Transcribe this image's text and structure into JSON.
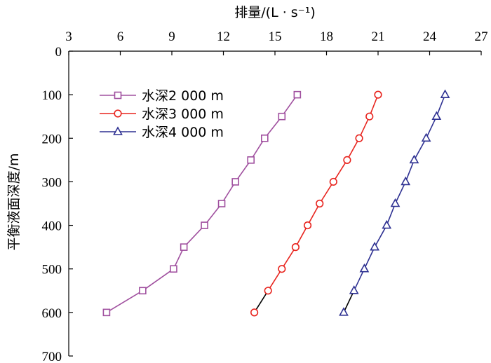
{
  "chart_data": {
    "type": "line",
    "xlabel": "排量/(L · s⁻¹)",
    "ylabel": "平衡液面深度/m",
    "x_axis_position": "top",
    "y_axis_inverted": true,
    "xlim": [
      3,
      27
    ],
    "ylim": [
      0,
      700
    ],
    "xticks": [
      "3",
      "6",
      "9",
      "12",
      "15",
      "18",
      "21",
      "24",
      "27"
    ],
    "yticks": [
      "0",
      "100",
      "200",
      "300",
      "400",
      "500",
      "600",
      "700"
    ],
    "grid": false,
    "legend_position": "top-left",
    "series": [
      {
        "name": "水深2 000 m",
        "marker": "square",
        "color": "#a0509f",
        "points": [
          [
            16.3,
            100
          ],
          [
            15.4,
            150
          ],
          [
            14.4,
            200
          ],
          [
            13.6,
            250
          ],
          [
            12.7,
            300
          ],
          [
            11.9,
            350
          ],
          [
            10.9,
            400
          ],
          [
            9.7,
            450
          ],
          [
            9.1,
            500
          ],
          [
            7.3,
            550
          ],
          [
            5.2,
            600
          ]
        ]
      },
      {
        "name": "水深3 000 m",
        "marker": "circle",
        "color": "#e8251f",
        "points": [
          [
            21.0,
            100
          ],
          [
            20.5,
            150
          ],
          [
            19.9,
            200
          ],
          [
            19.2,
            250
          ],
          [
            18.4,
            300
          ],
          [
            17.6,
            350
          ],
          [
            16.9,
            400
          ],
          [
            16.2,
            450
          ],
          [
            15.4,
            500
          ],
          [
            14.6,
            550
          ],
          [
            13.8,
            600
          ]
        ]
      },
      {
        "name": "水深4 000 m",
        "marker": "triangle",
        "color": "#2e3192",
        "points": [
          [
            24.9,
            100
          ],
          [
            24.4,
            150
          ],
          [
            23.8,
            200
          ],
          [
            23.1,
            250
          ],
          [
            22.6,
            300
          ],
          [
            22.0,
            350
          ],
          [
            21.5,
            400
          ],
          [
            20.8,
            450
          ],
          [
            20.2,
            500
          ],
          [
            19.6,
            550
          ],
          [
            19.0,
            600
          ]
        ]
      }
    ]
  }
}
